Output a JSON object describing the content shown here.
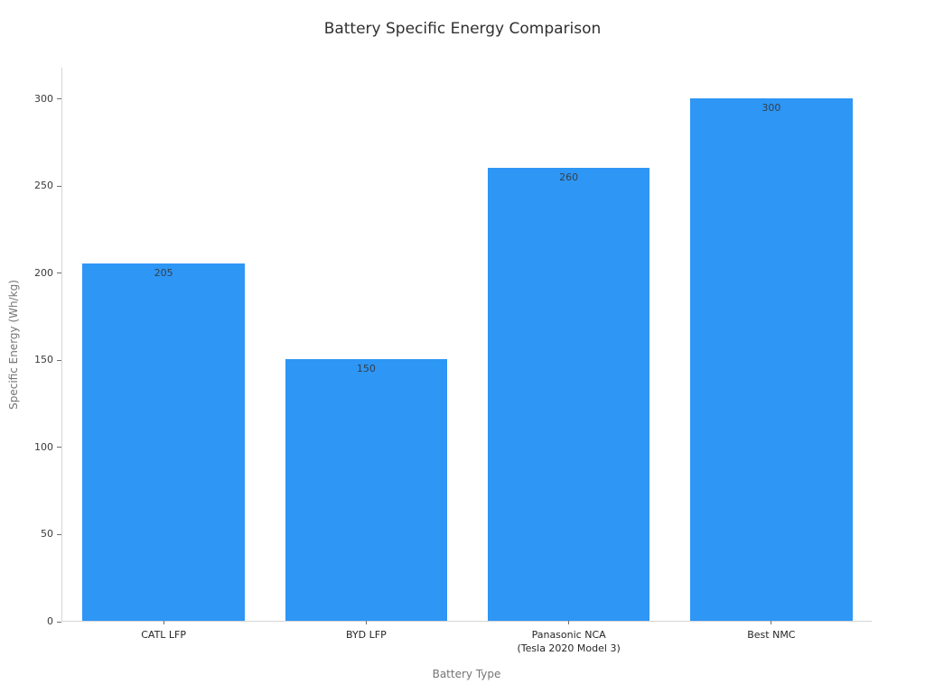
{
  "title": "Battery Specific Energy Comparison",
  "chart_data": {
    "type": "bar",
    "title": "Battery Specific Energy Comparison",
    "xlabel": "Battery Type",
    "ylabel": "Specific Energy (Wh/kg)",
    "categories": [
      "CATL LFP",
      "BYD LFP",
      "Panasonic NCA\n(Tesla 2020 Model 3)",
      "Best NMC"
    ],
    "values": [
      205,
      150,
      260,
      300
    ],
    "value_labels": [
      "205",
      "150",
      "260",
      "300"
    ],
    "yticks": [
      0,
      50,
      100,
      150,
      200,
      250,
      300
    ],
    "ylim": [
      0,
      318
    ],
    "grid": false,
    "legend": null,
    "bar_color": "#2e96f5",
    "value_label_color": "#31404f",
    "tick_label_color": "#3a3a3a",
    "axis_title_color": "#757575",
    "spine_color": "#d6d6d6"
  }
}
